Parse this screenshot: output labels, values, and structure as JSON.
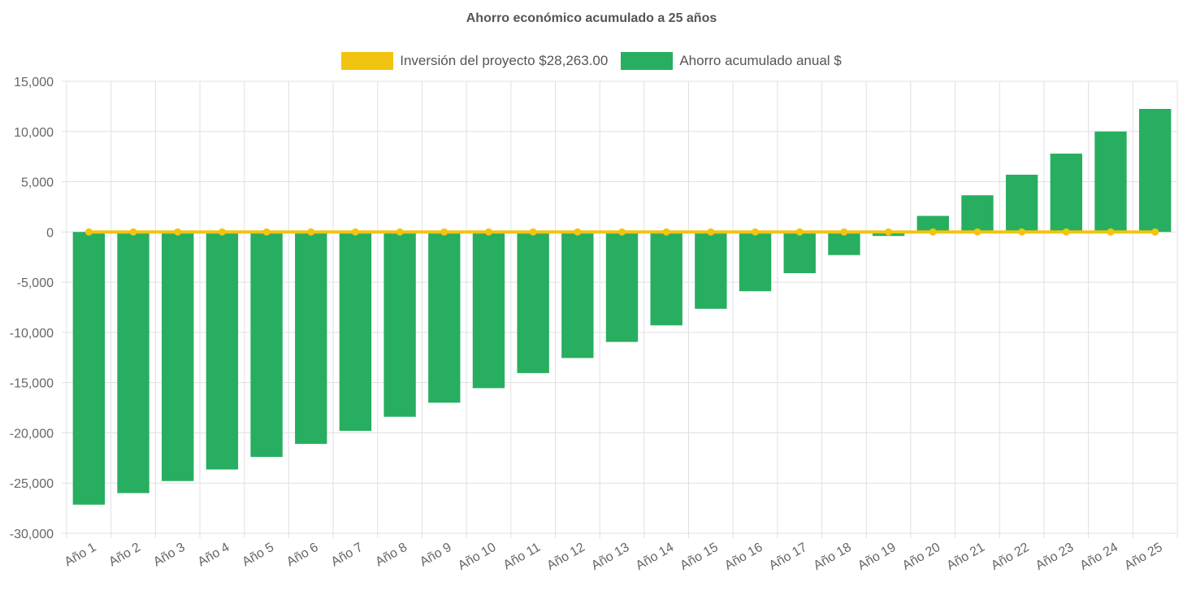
{
  "chart_data": {
    "type": "bar",
    "title": "Ahorro económico acumulado a 25 años",
    "xlabel": "",
    "ylabel": "",
    "ylim": [
      -30000,
      15000
    ],
    "yticks": [
      15000,
      10000,
      5000,
      0,
      -5000,
      -10000,
      -15000,
      -20000,
      -25000,
      -30000
    ],
    "ytick_labels": [
      "15,000",
      "10,000",
      "5,000",
      "0",
      "-5,000",
      "-10,000",
      "-15,000",
      "-20,000",
      "-25,000",
      "-30,000"
    ],
    "grid": true,
    "legend_position": "top-center",
    "categories": [
      "Año 1",
      "Año 2",
      "Año 3",
      "Año 4",
      "Año 5",
      "Año 6",
      "Año 7",
      "Año 8",
      "Año 9",
      "Año 10",
      "Año 11",
      "Año 12",
      "Año 13",
      "Año 14",
      "Año 15",
      "Año 16",
      "Año 17",
      "Año 18",
      "Año 19",
      "Año 20",
      "Año 21",
      "Año 22",
      "Año 23",
      "Año 24",
      "Año 25"
    ],
    "series": [
      {
        "name": "Inversión del proyecto $28,263.00",
        "type": "line",
        "color": "#f1c40f",
        "values": [
          0,
          0,
          0,
          0,
          0,
          0,
          0,
          0,
          0,
          0,
          0,
          0,
          0,
          0,
          0,
          0,
          0,
          0,
          0,
          0,
          0,
          0,
          0,
          0,
          0
        ]
      },
      {
        "name": "Ahorro acumulado anual $",
        "type": "bar",
        "color": "#27ae60",
        "values": [
          -27150,
          -26000,
          -24800,
          -23650,
          -22400,
          -21100,
          -19800,
          -18400,
          -17000,
          -15550,
          -14050,
          -12550,
          -10950,
          -9300,
          -7650,
          -5900,
          -4100,
          -2300,
          -400,
          1600,
          3650,
          5700,
          7800,
          10000,
          12250
        ]
      }
    ]
  }
}
